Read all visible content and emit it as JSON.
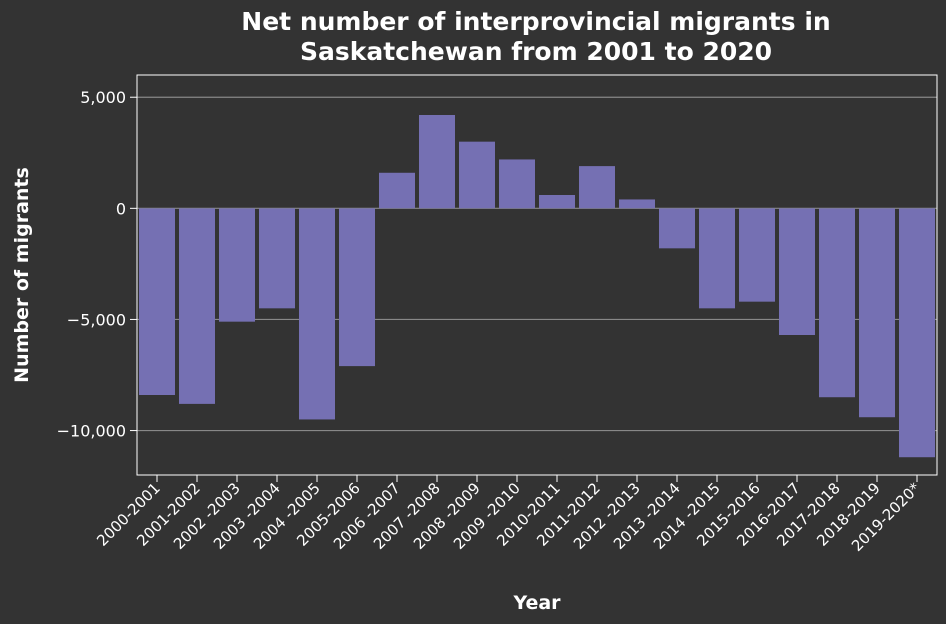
{
  "chart_data": {
    "type": "bar",
    "title": [
      "Net number of interprovincial migrants in",
      "Saskatchewan from 2001 to 2020"
    ],
    "xlabel": "Year",
    "ylabel": "Number of migrants",
    "categories": [
      "2000-2001",
      "2001-2002",
      "2002 -2003",
      "2003 -2004",
      "2004 -2005",
      "2005-2006",
      "2006 -2007",
      "2007 -2008",
      "2008 -2009",
      "2009 -2010",
      "2010-2011",
      "2011-2012",
      "2012 -2013",
      "2013 -2014",
      "2014 -2015",
      "2015-2016",
      "2016-2017",
      "2017-2018",
      "2018-2019",
      "2019-2020*"
    ],
    "values": [
      -8400,
      -8800,
      -5100,
      -4500,
      -9500,
      -7100,
      1600,
      4200,
      3000,
      2200,
      600,
      1900,
      400,
      -1800,
      -4500,
      -4200,
      -5700,
      -8500,
      -9400,
      -11200
    ],
    "ylim": [
      -12000,
      6000
    ],
    "yticks": [
      5000,
      0,
      -5000,
      -10000
    ],
    "ytick_labels": [
      "5,000",
      "0",
      "−5,000",
      "−10,000"
    ],
    "grid": true,
    "colors": {
      "background": "#333333",
      "bar": "#7570b3",
      "text": "#ffffff",
      "grid": "#888888",
      "axis": "#ffffff"
    }
  }
}
